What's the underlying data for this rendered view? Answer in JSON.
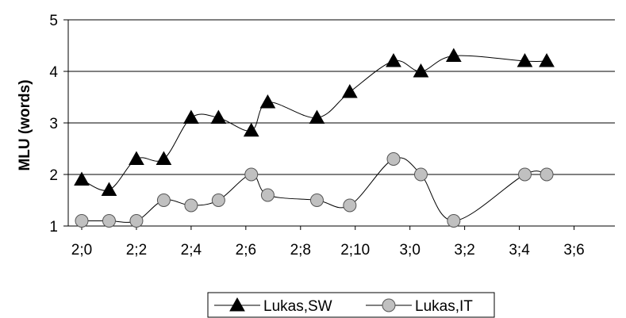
{
  "chart_data": {
    "type": "line",
    "xlabel": "",
    "ylabel": "MLU (words)",
    "ylim": [
      1,
      5
    ],
    "yticks": [
      "1",
      "2",
      "3",
      "4",
      "5"
    ],
    "x_ticks": [
      "2;0",
      "2;2",
      "2;4",
      "2;6",
      "2;8",
      "2;10",
      "3;0",
      "3;2",
      "3;4",
      "3;6"
    ],
    "x_unit": "age in months (2;0 = 24 months)",
    "x_range": [
      24,
      43
    ],
    "grid": "horizontal",
    "legend_position": "bottom",
    "series": [
      {
        "name": "Lukas,SW",
        "marker": "triangle",
        "color": "#000000",
        "x": [
          24,
          25,
          26,
          27,
          28,
          29,
          30.2,
          30.8,
          32.6,
          33.8,
          35.4,
          36.4,
          37.6,
          40.2,
          41
        ],
        "y": [
          1.9,
          1.7,
          2.3,
          2.3,
          3.1,
          3.1,
          2.85,
          3.4,
          3.1,
          3.6,
          4.2,
          4.0,
          4.3,
          4.2,
          4.2
        ]
      },
      {
        "name": "Lukas,IT",
        "marker": "circle",
        "color": "#c0c0c0",
        "x": [
          24,
          25,
          26,
          27,
          28,
          29,
          30.2,
          30.8,
          32.6,
          33.8,
          35.4,
          36.4,
          37.6,
          40.2,
          41
        ],
        "y": [
          1.1,
          1.1,
          1.1,
          1.5,
          1.4,
          1.5,
          2.0,
          1.6,
          1.5,
          1.4,
          2.3,
          2.0,
          1.1,
          2.0,
          2.0
        ]
      }
    ]
  }
}
